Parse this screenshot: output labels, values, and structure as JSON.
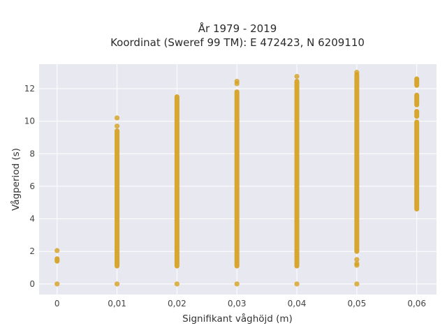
{
  "chart_data": {
    "type": "scatter",
    "title_line1": "År 1979 - 2019",
    "title_line2": "Koordinat (Sweref 99 TM): E 472423, N 6209110",
    "xlabel": "Signifikant våghöjd (m)",
    "ylabel": "Vågperiod (s)",
    "xlim": [
      -0.003,
      0.0633
    ],
    "ylim": [
      -0.65,
      13.5
    ],
    "x_ticks": [
      0,
      0.01,
      0.02,
      0.03,
      0.04,
      0.05,
      0.06
    ],
    "x_tick_labels": [
      "0",
      "0,01",
      "0,02",
      "0,03",
      "0,04",
      "0,05",
      "0,06"
    ],
    "y_ticks": [
      0,
      2,
      4,
      6,
      8,
      10,
      12
    ],
    "y_tick_labels": [
      "0",
      "2",
      "4",
      "6",
      "8",
      "10",
      "12"
    ],
    "grid": true,
    "colors": {
      "marker": "#d4a020",
      "plot_bg": "#e8e8f0",
      "grid": "#ffffff"
    },
    "series": [
      {
        "x": 0,
        "ranges": [
          [
            1.4,
            1.55
          ]
        ],
        "points": [
          0,
          2.05
        ]
      },
      {
        "x": 0.01,
        "ranges": [
          [
            1.1,
            9.4
          ]
        ],
        "points": [
          0,
          9.7,
          10.2
        ]
      },
      {
        "x": 0.02,
        "ranges": [
          [
            1.1,
            11.5
          ]
        ],
        "points": [
          0
        ]
      },
      {
        "x": 0.03,
        "ranges": [
          [
            1.1,
            11.8
          ]
        ],
        "points": [
          0,
          12.3,
          12.45
        ]
      },
      {
        "x": 0.04,
        "ranges": [
          [
            1.1,
            12.45
          ]
        ],
        "points": [
          0,
          12.75
        ]
      },
      {
        "x": 0.05,
        "ranges": [
          [
            2.0,
            12.85
          ]
        ],
        "points": [
          0,
          1.15,
          1.25,
          1.5,
          13.0
        ]
      },
      {
        "x": 0.06,
        "ranges": [
          [
            4.6,
            9.95
          ],
          [
            10.3,
            10.6
          ],
          [
            11.0,
            11.6
          ],
          [
            12.2,
            12.6
          ]
        ],
        "points": []
      }
    ]
  }
}
